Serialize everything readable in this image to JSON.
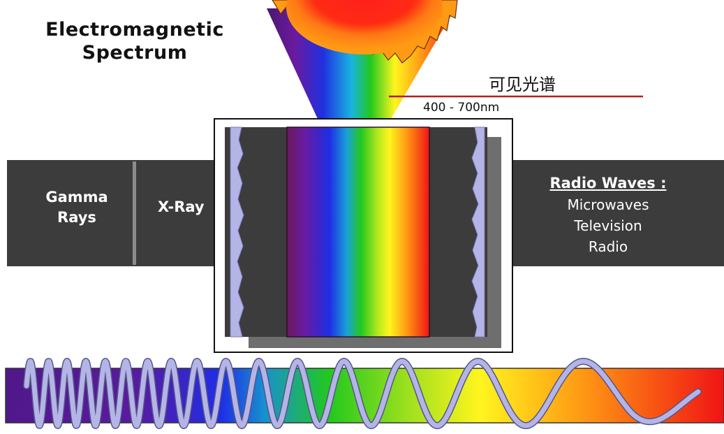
{
  "title": {
    "line1": "Electromagnetic",
    "line2": "Spectrum"
  },
  "visible_light": {
    "label": "可见光谱",
    "range": "400 - 700nm"
  },
  "bands": {
    "gamma": {
      "line1": "Gamma",
      "line2": "Rays"
    },
    "xray": {
      "label": "X-Ray"
    },
    "radio": {
      "heading": "Radio Waves :",
      "items": [
        "Microwaves",
        "Television",
        "Radio"
      ]
    }
  },
  "colors": {
    "band_bar": "#3c3c3c",
    "violet": "#5a1a8c",
    "blue": "#1e2ee6",
    "green": "#22c81e",
    "yellow": "#fff51e",
    "orange": "#ff9a14",
    "red": "#f01414",
    "wave": "#b4b4e6",
    "pointer_line": "#b41e1e"
  },
  "icons": {
    "sun": "sun-icon",
    "wave": "sine-wave-icon"
  }
}
